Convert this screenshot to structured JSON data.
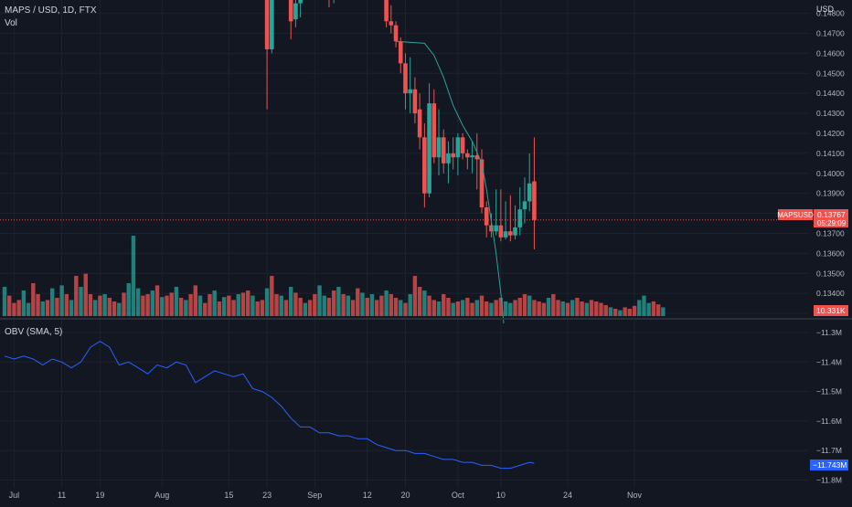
{
  "header": {
    "symbol_line": "MAPS / USD, 1D, FTX",
    "vol_label": "Vol",
    "obv_label": "OBV (SMA, 5)",
    "currency": "USD"
  },
  "price_badge": {
    "symbol": "MAPSUSD",
    "price": "0.13767",
    "countdown": "05:29:09",
    "volume_value": "10.331K",
    "color": "#f05350"
  },
  "obv_badge": {
    "value": "−11.743M",
    "color": "#2962ff"
  },
  "colors": {
    "background": "#131722",
    "grid": "#1e222d",
    "up": "#26a69a",
    "down": "#ef5350",
    "ma_line": "#26a69a",
    "obv_line": "#2962ff"
  },
  "chart_data": [
    {
      "type": "candlestick",
      "pane": "price",
      "ylim": [
        0.1325,
        0.1483
      ],
      "y_ticks": [
        "0.14800",
        "0.14700",
        "0.14600",
        "0.14500",
        "0.14400",
        "0.14300",
        "0.14200",
        "0.14100",
        "0.14000",
        "0.13900",
        "0.13800",
        "0.13700",
        "0.13600",
        "0.13500",
        "0.13400",
        "0.13300"
      ],
      "y_tick_values": [
        0.148,
        0.147,
        0.146,
        0.145,
        0.144,
        0.143,
        0.142,
        0.141,
        0.14,
        0.139,
        0.138,
        0.137,
        0.136,
        0.135,
        0.134,
        0.133
      ],
      "x_tick_labels": [
        "Jul",
        "11",
        "19",
        "Aug",
        "15",
        "23",
        "Sep",
        "12",
        "20",
        "Oct",
        "10",
        "24",
        "Nov"
      ],
      "x_tick_days": [
        30,
        40,
        48,
        61,
        75,
        83,
        93,
        104,
        112,
        123,
        132,
        146,
        160
      ],
      "candles": [
        {
          "day": 83,
          "o": 0.1492,
          "h": 0.1495,
          "l": 0.1432,
          "c": 0.1462
        },
        {
          "day": 84,
          "o": 0.1462,
          "h": 0.1492,
          "l": 0.146,
          "c": 0.149
        },
        {
          "day": 88,
          "o": 0.149,
          "h": 0.1492,
          "l": 0.1467,
          "c": 0.1476
        },
        {
          "day": 89,
          "o": 0.1477,
          "h": 0.149,
          "l": 0.1473,
          "c": 0.1485
        },
        {
          "day": 90,
          "o": 0.1485,
          "h": 0.1492,
          "l": 0.1478,
          "c": 0.149
        },
        {
          "day": 96,
          "o": 0.149,
          "h": 0.149,
          "l": 0.1483,
          "c": 0.1487
        },
        {
          "day": 97,
          "o": 0.1487,
          "h": 0.1492,
          "l": 0.1485,
          "c": 0.149
        },
        {
          "day": 108,
          "o": 0.149,
          "h": 0.1492,
          "l": 0.1473,
          "c": 0.1476
        },
        {
          "day": 109,
          "o": 0.1476,
          "h": 0.1484,
          "l": 0.147,
          "c": 0.1474
        },
        {
          "day": 110,
          "o": 0.1474,
          "h": 0.1476,
          "l": 0.1463,
          "c": 0.1466
        },
        {
          "day": 111,
          "o": 0.1466,
          "h": 0.1468,
          "l": 0.145,
          "c": 0.1455
        },
        {
          "day": 112,
          "o": 0.1455,
          "h": 0.146,
          "l": 0.1432,
          "c": 0.144
        },
        {
          "day": 113,
          "o": 0.144,
          "h": 0.1458,
          "l": 0.143,
          "c": 0.1442
        },
        {
          "day": 114,
          "o": 0.1442,
          "h": 0.1448,
          "l": 0.1425,
          "c": 0.143
        },
        {
          "day": 115,
          "o": 0.1432,
          "h": 0.144,
          "l": 0.1412,
          "c": 0.1418
        },
        {
          "day": 116,
          "o": 0.1418,
          "h": 0.1425,
          "l": 0.1383,
          "c": 0.139
        },
        {
          "day": 117,
          "o": 0.139,
          "h": 0.1445,
          "l": 0.1388,
          "c": 0.1435
        },
        {
          "day": 118,
          "o": 0.1435,
          "h": 0.1442,
          "l": 0.1405,
          "c": 0.1408
        },
        {
          "day": 119,
          "o": 0.1408,
          "h": 0.1432,
          "l": 0.1399,
          "c": 0.1418
        },
        {
          "day": 120,
          "o": 0.1418,
          "h": 0.1422,
          "l": 0.14,
          "c": 0.1405
        },
        {
          "day": 121,
          "o": 0.1405,
          "h": 0.1416,
          "l": 0.1395,
          "c": 0.141
        },
        {
          "day": 122,
          "o": 0.141,
          "h": 0.1418,
          "l": 0.1402,
          "c": 0.1408
        },
        {
          "day": 123,
          "o": 0.1408,
          "h": 0.142,
          "l": 0.1399,
          "c": 0.1418
        },
        {
          "day": 124,
          "o": 0.1418,
          "h": 0.142,
          "l": 0.1407,
          "c": 0.141
        },
        {
          "day": 125,
          "o": 0.141,
          "h": 0.1412,
          "l": 0.1402,
          "c": 0.1408
        },
        {
          "day": 126,
          "o": 0.1408,
          "h": 0.1416,
          "l": 0.14,
          "c": 0.1409
        },
        {
          "day": 127,
          "o": 0.1409,
          "h": 0.142,
          "l": 0.1392,
          "c": 0.1407
        },
        {
          "day": 128,
          "o": 0.1407,
          "h": 0.1412,
          "l": 0.138,
          "c": 0.1383
        },
        {
          "day": 129,
          "o": 0.1383,
          "h": 0.1386,
          "l": 0.1368,
          "c": 0.1374
        },
        {
          "day": 130,
          "o": 0.1374,
          "h": 0.138,
          "l": 0.1368,
          "c": 0.1371
        },
        {
          "day": 131,
          "o": 0.1371,
          "h": 0.1392,
          "l": 0.1369,
          "c": 0.1374
        },
        {
          "day": 132,
          "o": 0.1374,
          "h": 0.1392,
          "l": 0.1366,
          "c": 0.1368
        },
        {
          "day": 133,
          "o": 0.1368,
          "h": 0.1386,
          "l": 0.1367,
          "c": 0.1371
        },
        {
          "day": 134,
          "o": 0.1371,
          "h": 0.1389,
          "l": 0.1366,
          "c": 0.1369
        },
        {
          "day": 135,
          "o": 0.1369,
          "h": 0.1384,
          "l": 0.1367,
          "c": 0.1373
        },
        {
          "day": 136,
          "o": 0.1373,
          "h": 0.1393,
          "l": 0.1369,
          "c": 0.1382
        },
        {
          "day": 137,
          "o": 0.1382,
          "h": 0.1398,
          "l": 0.1375,
          "c": 0.1386
        },
        {
          "day": 138,
          "o": 0.1386,
          "h": 0.141,
          "l": 0.1381,
          "c": 0.1395
        },
        {
          "day": 139,
          "o": 0.1396,
          "h": 0.1418,
          "l": 0.1362,
          "c": 0.13767
        }
      ],
      "ma_line": [
        {
          "day": 110,
          "v": 0.1466
        },
        {
          "day": 116,
          "v": 0.1465
        },
        {
          "day": 118,
          "v": 0.1459
        },
        {
          "day": 120,
          "v": 0.1448
        },
        {
          "day": 122,
          "v": 0.1434
        },
        {
          "day": 124,
          "v": 0.1424
        },
        {
          "day": 126,
          "v": 0.1416
        },
        {
          "day": 128,
          "v": 0.1405
        },
        {
          "day": 129,
          "v": 0.1392
        },
        {
          "day": 130,
          "v": 0.1376
        },
        {
          "day": 131,
          "v": 0.136
        },
        {
          "day": 132,
          "v": 0.134
        },
        {
          "day": 132.6,
          "v": 0.1325
        }
      ],
      "last_price": 0.13767
    },
    {
      "type": "bar",
      "pane": "volume",
      "series": [
        {
          "values": [
            40,
            28,
            18,
            22,
            35,
            18,
            45,
            30,
            20,
            22,
            38,
            25,
            42,
            30,
            22,
            55,
            40,
            58,
            30,
            22,
            28,
            30,
            25,
            20,
            18,
            32,
            45,
            110,
            38,
            28,
            30,
            35,
            42,
            26,
            28,
            32,
            40,
            25,
            22,
            30,
            42,
            28,
            18,
            30,
            35,
            20,
            26,
            28,
            22,
            30,
            32,
            35,
            28,
            20,
            22,
            38,
            55,
            30,
            28,
            22,
            40,
            32,
            25,
            18,
            22,
            30,
            42,
            28,
            25,
            35,
            40,
            30,
            28,
            22,
            38,
            32,
            25,
            30,
            22,
            28,
            35,
            30,
            25,
            22,
            18,
            30,
            55,
            40,
            35,
            28,
            22,
            20,
            30,
            25,
            18,
            20,
            22,
            25,
            18,
            22,
            28,
            20,
            18,
            22,
            25,
            20,
            18,
            22,
            25,
            30,
            28,
            22,
            20,
            18,
            25,
            30,
            22,
            20,
            18,
            22,
            25,
            20,
            18,
            22,
            20,
            18,
            15,
            12,
            10,
            8,
            12,
            10,
            14,
            22,
            28,
            18,
            20,
            16,
            12
          ],
          "up": [
            true,
            false,
            false,
            false,
            true,
            true,
            false,
            false,
            true,
            false,
            true,
            false,
            true,
            false,
            true,
            false,
            true,
            false,
            false,
            true,
            false,
            true,
            false,
            false,
            true,
            false,
            true,
            true,
            true,
            false,
            false,
            true,
            false,
            true,
            false,
            false,
            true,
            false,
            true,
            false,
            false,
            true,
            false,
            false,
            true,
            false,
            true,
            false,
            false,
            true,
            false,
            false,
            true,
            false,
            false,
            true,
            false,
            false,
            true,
            false,
            true,
            false,
            false,
            true,
            false,
            false,
            true,
            true,
            false,
            false,
            true,
            false,
            true,
            false,
            false,
            true,
            false,
            true,
            false,
            false,
            true,
            false,
            false,
            true,
            false,
            true,
            false,
            false,
            true,
            false,
            false,
            true,
            false,
            false,
            true,
            false,
            true,
            false,
            false,
            true,
            false,
            false,
            true,
            false,
            false,
            true,
            true,
            false,
            false,
            false,
            true,
            false,
            false,
            false,
            true,
            false,
            false,
            true,
            false,
            true,
            false,
            false,
            true,
            false,
            false,
            false,
            false,
            true,
            false,
            true,
            false,
            false,
            false,
            true,
            true,
            true,
            false,
            false,
            true
          ]
        }
      ]
    },
    {
      "type": "line",
      "pane": "obv",
      "ylim": [
        -11.82,
        -11.26
      ],
      "y_ticks": [
        "−11.3M",
        "−11.4M",
        "−11.5M",
        "−11.6M",
        "−11.7M",
        "−11.8M"
      ],
      "y_tick_values": [
        -11.3,
        -11.4,
        -11.5,
        -11.6,
        -11.7,
        -11.8
      ],
      "series": [
        {
          "x": [
            28,
            30,
            32,
            34,
            36,
            38,
            40,
            42,
            44,
            46,
            48,
            50,
            52,
            54,
            56,
            58,
            60,
            62,
            64,
            66,
            68,
            70,
            72,
            74,
            76,
            78,
            80,
            82,
            84,
            86,
            88,
            90,
            92,
            94,
            96,
            98,
            100,
            102,
            104,
            106,
            108,
            110,
            112,
            114,
            116,
            118,
            120,
            122,
            124,
            126,
            128,
            130,
            132,
            134,
            136,
            138,
            139
          ],
          "values": [
            -11.38,
            -11.39,
            -11.38,
            -11.39,
            -11.41,
            -11.39,
            -11.4,
            -11.42,
            -11.4,
            -11.35,
            -11.33,
            -11.35,
            -11.41,
            -11.4,
            -11.42,
            -11.44,
            -11.41,
            -11.42,
            -11.4,
            -11.41,
            -11.47,
            -11.45,
            -11.43,
            -11.44,
            -11.45,
            -11.44,
            -11.49,
            -11.5,
            -11.52,
            -11.55,
            -11.59,
            -11.62,
            -11.62,
            -11.64,
            -11.64,
            -11.65,
            -11.65,
            -11.66,
            -11.66,
            -11.68,
            -11.69,
            -11.7,
            -11.7,
            -11.71,
            -11.71,
            -11.72,
            -11.73,
            -11.73,
            -11.74,
            -11.74,
            -11.75,
            -11.75,
            -11.76,
            -11.76,
            -11.75,
            -11.74,
            -11.743
          ]
        }
      ]
    }
  ]
}
